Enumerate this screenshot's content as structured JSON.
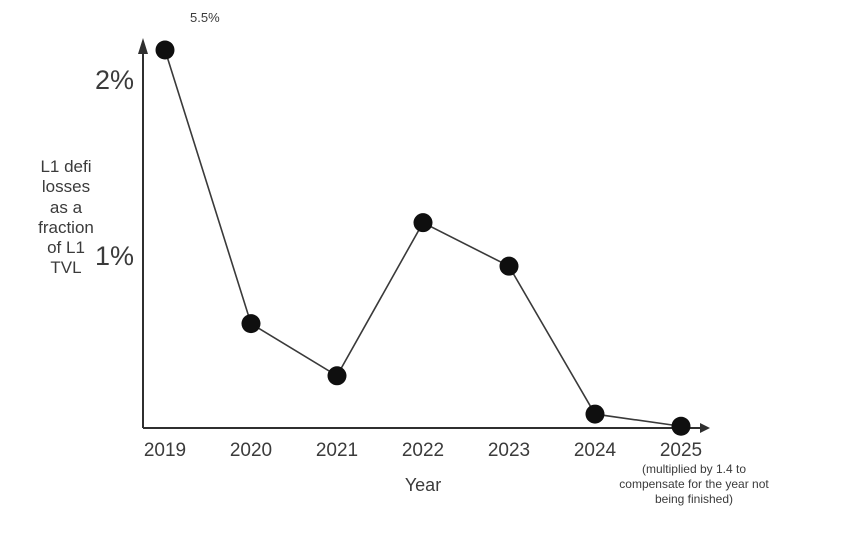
{
  "chart_data": {
    "type": "line",
    "categories": [
      "2019",
      "2020",
      "2021",
      "2022",
      "2023",
      "2024",
      "2025"
    ],
    "values": [
      5.5,
      0.6,
      0.3,
      1.18,
      0.93,
      0.08,
      0.01
    ],
    "xlabel": "Year",
    "ylabel": "L1 defi losses as a fraction of L1 TVL",
    "y_ticks": [
      {
        "label": "2%",
        "value": 2
      },
      {
        "label": "1%",
        "value": 1
      }
    ],
    "ylim": [
      0,
      2.2
    ],
    "grid": false,
    "legend": "none",
    "marker": "filled-circle",
    "clipped_points": [
      {
        "category": "2019",
        "actual_value_label": "5.5%",
        "drawn_clipped_at_top": true
      }
    ],
    "annotations": [
      {
        "text": "5.5%",
        "attached_to": "2019 data point"
      },
      {
        "text": "(multiplied by 1.4 to compensate for the year not being finished)",
        "attached_to": "2025 x-axis label"
      }
    ],
    "colors": {
      "line": "#3a3a3a",
      "marker": "#0f0f0f",
      "axis": "#2f2f2f",
      "text": "#3b3b3b",
      "background": "#ffffff"
    }
  },
  "labels": {
    "peak_annotation": "5.5%",
    "ytick_2": "2%",
    "ytick_1": "1%",
    "ylabel_lines": "L1 defi\nlosses\nas a\nfraction\nof L1\nTVL",
    "xlabel": "Year",
    "x2025_note_lines": "(multiplied by 1.4 to\ncompensate for the year not\nbeing finished)"
  }
}
